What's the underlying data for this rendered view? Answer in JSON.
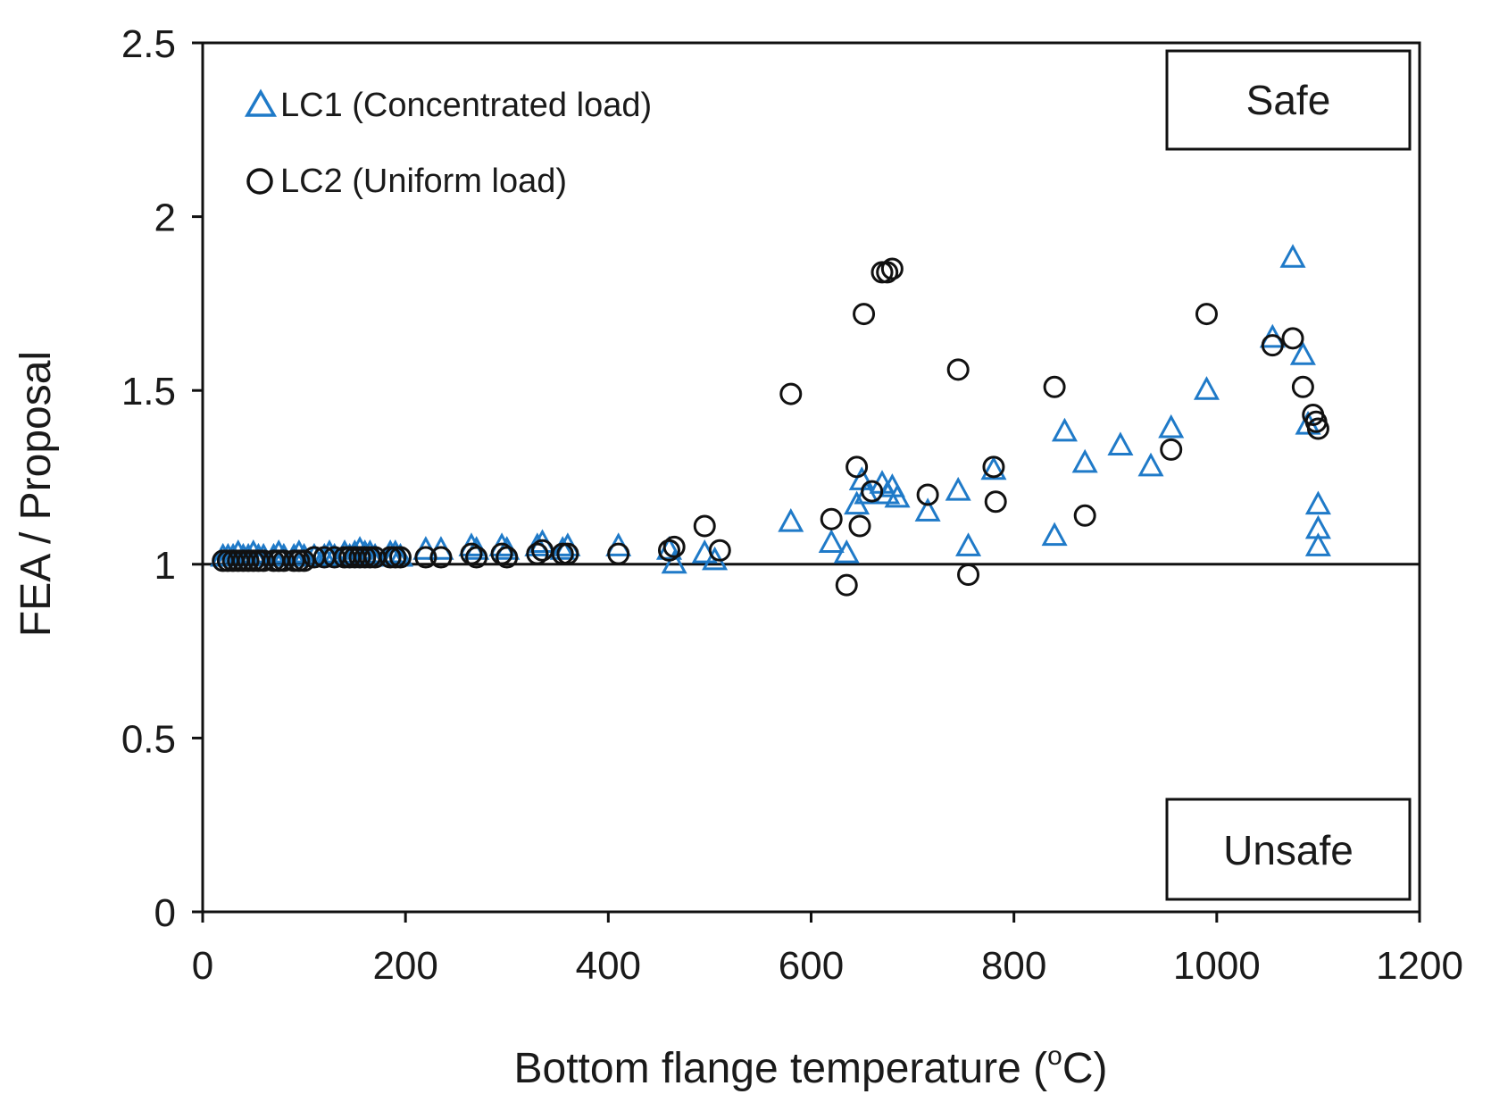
{
  "colors": {
    "lc1": "#1f7ac8",
    "lc2": "#111111",
    "axis": "#111111",
    "background": "#ffffff"
  },
  "chart_data": {
    "type": "scatter",
    "title": "",
    "xlabel_main": "Bottom flange temperature (",
    "xlabel_sup": "o",
    "xlabel_end": "C)",
    "ylabel": "FEA / Proposal",
    "xlim": [
      0,
      1200
    ],
    "ylim": [
      0,
      2.5
    ],
    "x_ticks": [
      0,
      200,
      400,
      600,
      800,
      1000,
      1200
    ],
    "x_tick_labels": [
      "0",
      "200",
      "400",
      "600",
      "800",
      "1000",
      "1200"
    ],
    "y_ticks": [
      0,
      0.5,
      1,
      1.5,
      2,
      2.5
    ],
    "y_tick_labels": [
      "0",
      "0.5",
      "1",
      "1.5",
      "2",
      "2.5"
    ],
    "grid": false,
    "reference_line": 1.0,
    "legend_position": "top-left",
    "annotations": {
      "safe": "Safe",
      "unsafe": "Unsafe"
    },
    "series": [
      {
        "name": "LC1 (Concentrated load)",
        "marker": "triangle",
        "color": "#1f7ac8",
        "points": [
          [
            20,
            1.02
          ],
          [
            25,
            1.02
          ],
          [
            30,
            1.02
          ],
          [
            35,
            1.03
          ],
          [
            40,
            1.02
          ],
          [
            45,
            1.02
          ],
          [
            50,
            1.03
          ],
          [
            55,
            1.02
          ],
          [
            60,
            1.02
          ],
          [
            70,
            1.02
          ],
          [
            75,
            1.03
          ],
          [
            80,
            1.02
          ],
          [
            90,
            1.02
          ],
          [
            95,
            1.03
          ],
          [
            100,
            1.02
          ],
          [
            110,
            1.02
          ],
          [
            120,
            1.02
          ],
          [
            125,
            1.03
          ],
          [
            130,
            1.02
          ],
          [
            140,
            1.03
          ],
          [
            145,
            1.02
          ],
          [
            150,
            1.03
          ],
          [
            155,
            1.04
          ],
          [
            160,
            1.03
          ],
          [
            165,
            1.03
          ],
          [
            170,
            1.02
          ],
          [
            185,
            1.03
          ],
          [
            190,
            1.03
          ],
          [
            195,
            1.02
          ],
          [
            220,
            1.04
          ],
          [
            235,
            1.04
          ],
          [
            265,
            1.05
          ],
          [
            270,
            1.04
          ],
          [
            295,
            1.05
          ],
          [
            300,
            1.04
          ],
          [
            330,
            1.05
          ],
          [
            335,
            1.06
          ],
          [
            355,
            1.04
          ],
          [
            360,
            1.05
          ],
          [
            410,
            1.05
          ],
          [
            460,
            1.04
          ],
          [
            465,
            1.0
          ],
          [
            495,
            1.03
          ],
          [
            505,
            1.01
          ],
          [
            580,
            1.12
          ],
          [
            620,
            1.06
          ],
          [
            635,
            1.03
          ],
          [
            645,
            1.17
          ],
          [
            650,
            1.24
          ],
          [
            655,
            1.2
          ],
          [
            670,
            1.23
          ],
          [
            675,
            1.2
          ],
          [
            680,
            1.22
          ],
          [
            685,
            1.19
          ],
          [
            715,
            1.15
          ],
          [
            745,
            1.21
          ],
          [
            755,
            1.05
          ],
          [
            780,
            1.27
          ],
          [
            840,
            1.08
          ],
          [
            850,
            1.38
          ],
          [
            870,
            1.29
          ],
          [
            905,
            1.34
          ],
          [
            935,
            1.28
          ],
          [
            955,
            1.39
          ],
          [
            990,
            1.5
          ],
          [
            1055,
            1.65
          ],
          [
            1075,
            1.88
          ],
          [
            1085,
            1.6
          ],
          [
            1090,
            1.4
          ],
          [
            1100,
            1.17
          ],
          [
            1100,
            1.1
          ],
          [
            1100,
            1.05
          ]
        ]
      },
      {
        "name": "LC2 (Uniform load)",
        "marker": "circle",
        "color": "#111111",
        "points": [
          [
            20,
            1.01
          ],
          [
            25,
            1.01
          ],
          [
            30,
            1.01
          ],
          [
            35,
            1.01
          ],
          [
            40,
            1.01
          ],
          [
            45,
            1.01
          ],
          [
            50,
            1.01
          ],
          [
            55,
            1.01
          ],
          [
            60,
            1.01
          ],
          [
            70,
            1.01
          ],
          [
            75,
            1.01
          ],
          [
            80,
            1.01
          ],
          [
            90,
            1.01
          ],
          [
            95,
            1.01
          ],
          [
            100,
            1.01
          ],
          [
            110,
            1.02
          ],
          [
            120,
            1.02
          ],
          [
            130,
            1.02
          ],
          [
            140,
            1.02
          ],
          [
            145,
            1.02
          ],
          [
            150,
            1.02
          ],
          [
            155,
            1.02
          ],
          [
            160,
            1.02
          ],
          [
            165,
            1.02
          ],
          [
            170,
            1.02
          ],
          [
            185,
            1.02
          ],
          [
            190,
            1.02
          ],
          [
            195,
            1.02
          ],
          [
            220,
            1.02
          ],
          [
            235,
            1.02
          ],
          [
            265,
            1.03
          ],
          [
            270,
            1.02
          ],
          [
            295,
            1.03
          ],
          [
            300,
            1.02
          ],
          [
            330,
            1.03
          ],
          [
            335,
            1.04
          ],
          [
            355,
            1.03
          ],
          [
            360,
            1.03
          ],
          [
            410,
            1.03
          ],
          [
            460,
            1.04
          ],
          [
            465,
            1.05
          ],
          [
            495,
            1.11
          ],
          [
            510,
            1.04
          ],
          [
            580,
            1.49
          ],
          [
            620,
            1.13
          ],
          [
            635,
            0.94
          ],
          [
            645,
            1.28
          ],
          [
            648,
            1.11
          ],
          [
            652,
            1.72
          ],
          [
            660,
            1.21
          ],
          [
            670,
            1.84
          ],
          [
            675,
            1.84
          ],
          [
            680,
            1.85
          ],
          [
            715,
            1.2
          ],
          [
            745,
            1.56
          ],
          [
            755,
            0.97
          ],
          [
            780,
            1.28
          ],
          [
            782,
            1.18
          ],
          [
            840,
            1.51
          ],
          [
            870,
            1.14
          ],
          [
            955,
            1.33
          ],
          [
            990,
            1.72
          ],
          [
            1055,
            1.63
          ],
          [
            1075,
            1.65
          ],
          [
            1085,
            1.51
          ],
          [
            1095,
            1.43
          ],
          [
            1098,
            1.41
          ],
          [
            1100,
            1.39
          ]
        ]
      }
    ]
  }
}
